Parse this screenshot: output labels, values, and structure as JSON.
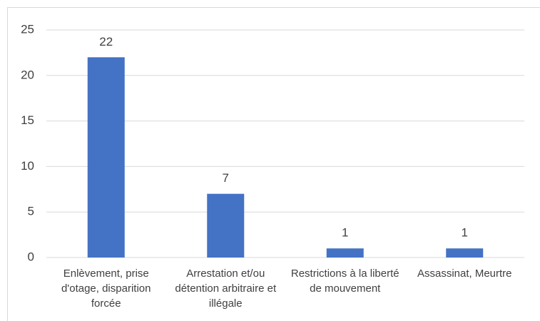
{
  "chart_data": {
    "type": "bar",
    "categories": [
      "Enlèvement, prise d'otage, disparition forcée",
      "Arrestation et/ou détention arbitraire et illégale",
      "Restrictions à la liberté de mouvement",
      "Assassinat, Meurtre"
    ],
    "values": [
      22,
      7,
      1,
      1
    ],
    "color": "#4472c4",
    "ylim": [
      0,
      25
    ],
    "yticks": [
      0,
      5,
      10,
      15,
      20,
      25
    ],
    "grid": true,
    "data_labels": true
  }
}
